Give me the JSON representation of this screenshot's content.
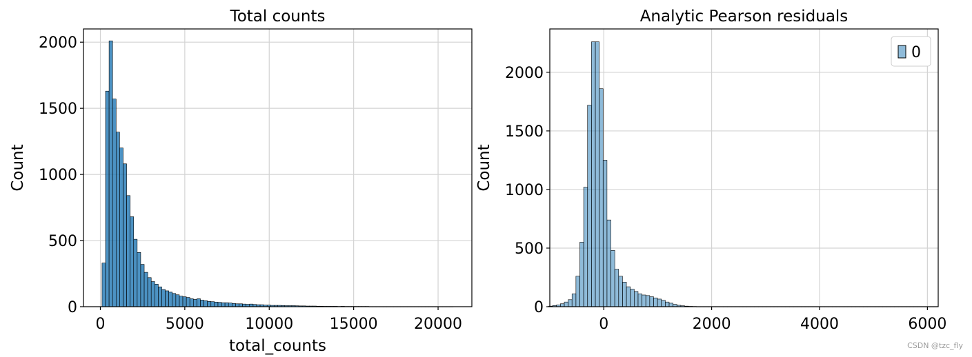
{
  "watermark": "CSDN @tzc_fly",
  "chart_data": [
    {
      "type": "bar",
      "subtype": "histogram",
      "title": "Total counts",
      "xlabel": "total_counts",
      "ylabel": "Count",
      "xlim": [
        -1000,
        22000
      ],
      "ylim": [
        0,
        2100
      ],
      "xticks": [
        0,
        5000,
        10000,
        15000,
        20000
      ],
      "xtick_labels": [
        "0",
        "5000",
        "10000",
        "15000",
        "20000"
      ],
      "yticks": [
        0,
        500,
        1000,
        1500,
        2000
      ],
      "ytick_labels": [
        "0",
        "500",
        "1000",
        "1500",
        "2000"
      ],
      "grid": true,
      "bar_color": "#1f77b4",
      "bar_opacity": 0.8,
      "bin_start": 100,
      "bin_width": 208,
      "values": [
        330,
        1630,
        2010,
        1570,
        1320,
        1200,
        1080,
        840,
        680,
        510,
        410,
        320,
        260,
        220,
        190,
        170,
        150,
        130,
        120,
        110,
        100,
        90,
        80,
        75,
        70,
        60,
        55,
        60,
        50,
        45,
        40,
        38,
        35,
        33,
        30,
        30,
        28,
        25,
        22,
        22,
        20,
        18,
        20,
        17,
        15,
        15,
        12,
        12,
        10,
        10,
        10,
        9,
        8,
        8,
        8,
        7,
        6,
        6,
        5,
        5,
        5,
        4,
        4,
        3,
        3,
        3,
        3,
        2,
        3,
        2,
        2,
        2,
        2,
        2,
        2,
        2,
        1,
        1,
        1,
        1,
        1,
        1,
        1,
        1,
        1,
        1,
        1,
        1,
        1,
        1,
        1,
        1,
        1,
        1,
        1,
        1,
        1,
        1,
        1,
        1
      ]
    },
    {
      "type": "bar",
      "subtype": "histogram",
      "title": "Analytic Pearson residuals",
      "xlabel": "",
      "ylabel": "Count",
      "xlim": [
        -1000,
        6200
      ],
      "ylim": [
        0,
        2370
      ],
      "xticks": [
        0,
        2000,
        4000,
        6000
      ],
      "xtick_labels": [
        "0",
        "2000",
        "4000",
        "6000"
      ],
      "yticks": [
        0,
        500,
        1000,
        1500,
        2000
      ],
      "ytick_labels": [
        "0",
        "500",
        "1000",
        "1500",
        "2000"
      ],
      "grid": true,
      "bar_color": "#1f77b4",
      "bar_opacity": 0.5,
      "legend": {
        "entries": [
          "0"
        ],
        "position": "top-right"
      },
      "bin_start": -1020,
      "bin_width": 72,
      "values": [
        5,
        10,
        15,
        25,
        40,
        60,
        110,
        260,
        550,
        1020,
        1720,
        2260,
        2260,
        1860,
        1250,
        740,
        480,
        320,
        260,
        210,
        170,
        150,
        130,
        110,
        100,
        95,
        85,
        75,
        65,
        55,
        40,
        30,
        20,
        12,
        8,
        5,
        3,
        2,
        1,
        1,
        1,
        1,
        1,
        1,
        1,
        1,
        1,
        1,
        1,
        1,
        1,
        1,
        1,
        1,
        1,
        1,
        1,
        1,
        1,
        1,
        1,
        1,
        1,
        1,
        1,
        1,
        1,
        1,
        1,
        1,
        1,
        1,
        1,
        1,
        1,
        1,
        1,
        1,
        1,
        1,
        1,
        1,
        1,
        1,
        1,
        1,
        1,
        1,
        1,
        1,
        1,
        1,
        1,
        1,
        1,
        1,
        1,
        1,
        1,
        1
      ]
    }
  ]
}
